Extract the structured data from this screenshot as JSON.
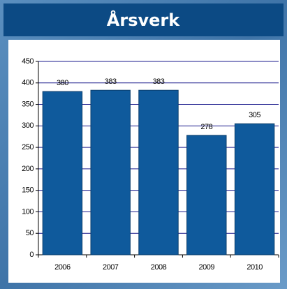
{
  "chart_data": {
    "type": "bar",
    "title": "Årsverk",
    "categories": [
      "2006",
      "2007",
      "2008",
      "2009",
      "2010"
    ],
    "values": [
      380,
      383,
      383,
      278,
      305
    ],
    "color": "#0f5a9c",
    "ylim": [
      0,
      450
    ],
    "yticks": [
      0,
      50,
      100,
      150,
      200,
      250,
      300,
      350,
      400,
      450
    ],
    "grid": true
  }
}
